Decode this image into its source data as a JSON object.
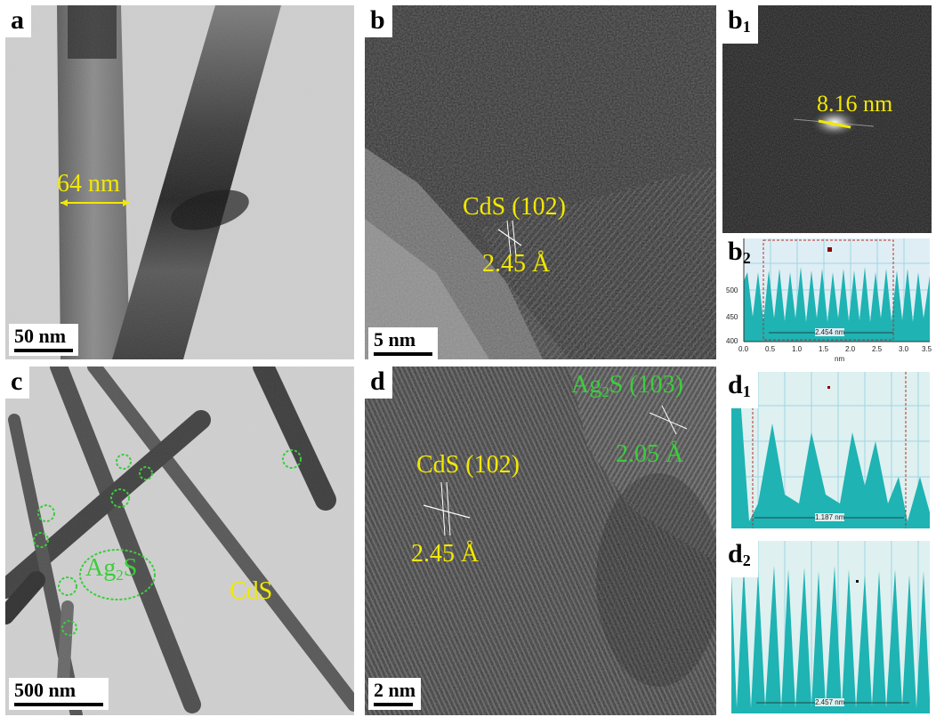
{
  "panels": {
    "a": {
      "letter": "a",
      "scale": "50 nm",
      "measure": "64 nm"
    },
    "b": {
      "letter": "b",
      "scale": "5 nm",
      "plane": "CdS (102)",
      "spacing": "2.45 Å"
    },
    "b1": {
      "letter": "b",
      "sub": "1",
      "measure": "8.16 nm"
    },
    "b2": {
      "letter": "b",
      "sub": "2",
      "yticks": [
        "500",
        "450",
        "400"
      ],
      "xticks": [
        "0.0",
        "0.5",
        "1.0",
        "1.5",
        "2.0",
        "2.5",
        "3.0",
        "3.5"
      ],
      "xunit": "nm",
      "span": "2.454 nm"
    },
    "c": {
      "letter": "c",
      "scale": "500 nm",
      "ag2s": "Ag",
      "ag2s_sub": "2",
      "ag2s_tail": "S",
      "cds": "CdS"
    },
    "d": {
      "letter": "d",
      "scale": "2 nm",
      "plane1": "CdS (102)",
      "spacing1": "2.45 Å",
      "plane2_a": "Ag",
      "plane2_sub": "2",
      "plane2_b": "S (103)",
      "spacing2": "2.05 Å"
    },
    "d1": {
      "letter": "d",
      "sub": "1",
      "span": "1.187 nm"
    },
    "d2": {
      "letter": "d",
      "sub": "2",
      "span": "2.457 nm"
    }
  },
  "colors": {
    "annotation_yellow": "#f2e800",
    "annotation_green": "#3dcc3d",
    "profile_fill": "#1fb3b3"
  }
}
